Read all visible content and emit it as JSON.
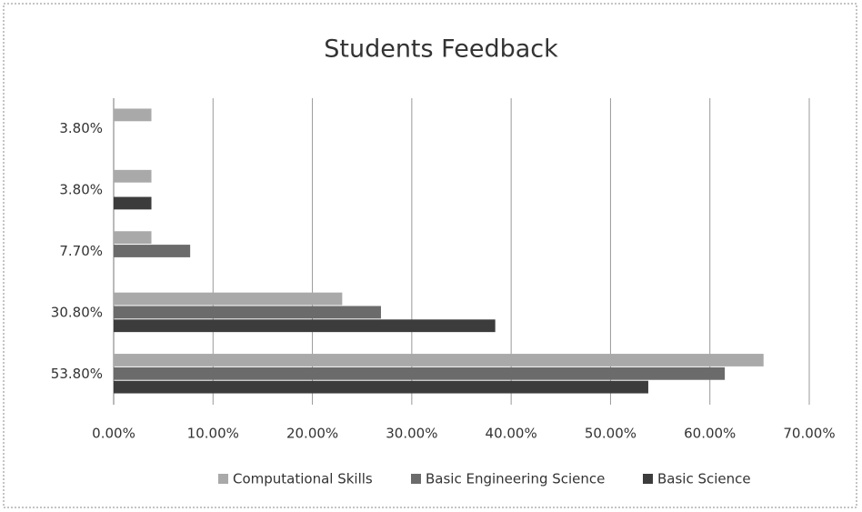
{
  "chart_data": {
    "type": "hbar",
    "title": "Students Feedback",
    "categories": [
      "3.80%",
      "3.80%",
      "7.70%",
      "30.80%",
      "53.80%"
    ],
    "series": [
      {
        "name": "Computational Skills",
        "color": "#a9a9a9",
        "values": [
          3.8,
          3.8,
          3.8,
          23.0,
          65.4
        ]
      },
      {
        "name": "Basic Engineering Science",
        "color": "#6b6b6b",
        "values": [
          0,
          0,
          7.7,
          26.9,
          61.5
        ]
      },
      {
        "name": "Basic Science",
        "color": "#3c3c3c",
        "values": [
          0,
          3.8,
          0,
          38.4,
          53.8
        ]
      }
    ],
    "xlim": [
      0,
      70
    ],
    "xticks": [
      {
        "value": 0,
        "label": "0.00%"
      },
      {
        "value": 10,
        "label": "10.00%"
      },
      {
        "value": 20,
        "label": "20.00%"
      },
      {
        "value": 30,
        "label": "30.00%"
      },
      {
        "value": 40,
        "label": "40.00%"
      },
      {
        "value": 50,
        "label": "50.00%"
      },
      {
        "value": 60,
        "label": "60.00%"
      },
      {
        "value": 70,
        "label": "70.00%"
      }
    ],
    "grid": true,
    "legend": "bottom"
  }
}
